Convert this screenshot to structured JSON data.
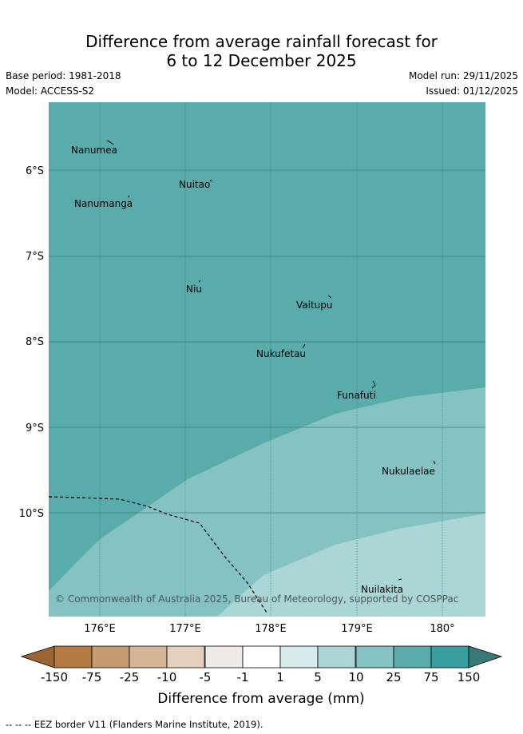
{
  "title": {
    "line1": "Difference from average rainfall forecast for",
    "line2": "6 to 12 December 2025"
  },
  "meta": {
    "base_period": "Base period: 1981-2018",
    "model": "Model: ACCESS-S2",
    "model_run": "Model run: 29/11/2025",
    "issued": "Issued: 01/12/2025"
  },
  "map": {
    "lon_labels": [
      "176°E",
      "177°E",
      "178°E",
      "179°E",
      "180°"
    ],
    "lat_labels": [
      "6°S",
      "7°S",
      "8°S",
      "9°S",
      "10°S"
    ],
    "islands": [
      "Nanumea",
      "Nuitao",
      "Nanumanga",
      "Niu",
      "Vaitupu",
      "Nukufetau",
      "Funafuti",
      "Nukulaelae",
      "Nuilakita"
    ],
    "copyright": "© Commonwealth of Australia 2025, Bureau of Meteorology, supported by COSPPac",
    "zone_colors": {
      "dark": "#5aabab",
      "mid": "#85c2c2",
      "light": "#acd5d5"
    }
  },
  "legend": {
    "tick_labels": [
      "-150",
      "-75",
      "-25",
      "-10",
      "-5",
      "-1",
      "1",
      "5",
      "10",
      "25",
      "75",
      "150"
    ],
    "colors": [
      "#9c6431",
      "#b47a44",
      "#c59a72",
      "#d4b496",
      "#e5d0bf",
      "#eeeae7",
      "#ffffff",
      "#d7ebea",
      "#acd5d5",
      "#85c2c2",
      "#5aabab",
      "#399e9e",
      "#3b7878"
    ],
    "title": "Difference from average (mm)"
  },
  "footer": {
    "eez_text": "--  --  -- EEZ border V11 (Flanders Marine Institute, 2019)."
  }
}
